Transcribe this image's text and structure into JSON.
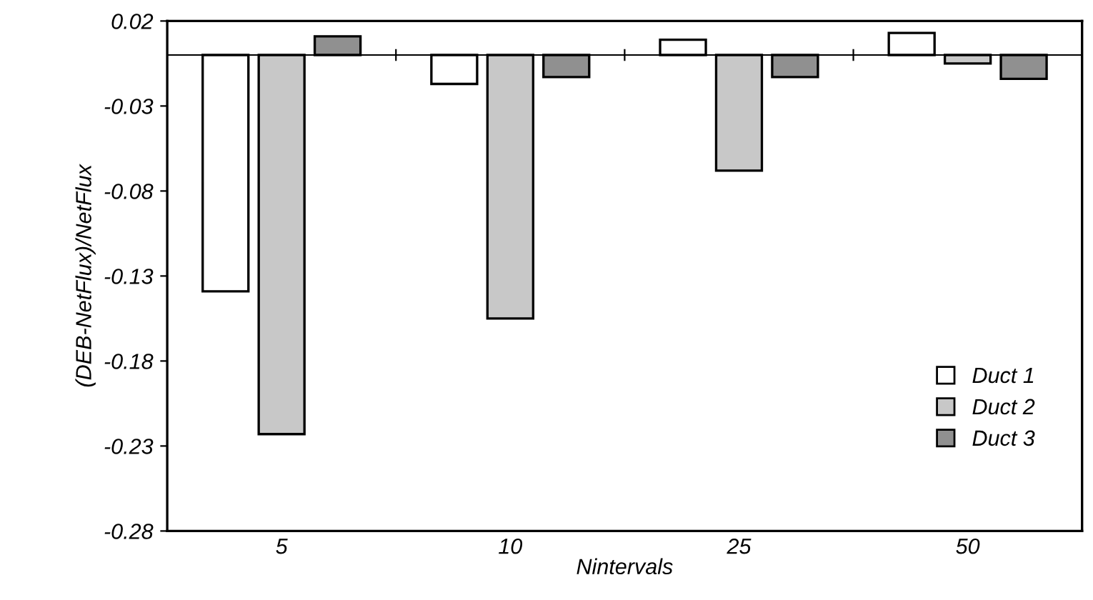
{
  "chart_data": {
    "type": "bar",
    "xlabel": "Nintervals",
    "ylabel": "(DEB-NetFlux)/NetFlux",
    "categories": [
      "5",
      "10",
      "25",
      "50"
    ],
    "series": [
      {
        "name": "Duct 1",
        "color": "#ffffff",
        "values": [
          -0.139,
          -0.017,
          0.009,
          0.013
        ]
      },
      {
        "name": "Duct 2",
        "color": "#c8c8c8",
        "values": [
          -0.223,
          -0.155,
          -0.068,
          -0.005
        ]
      },
      {
        "name": "Duct 3",
        "color": "#909090",
        "values": [
          0.011,
          -0.013,
          -0.013,
          -0.014
        ]
      }
    ],
    "ylim": [
      -0.28,
      0.02
    ],
    "yticks": [
      -0.28,
      -0.23,
      -0.18,
      -0.13,
      -0.08,
      -0.03,
      0.02
    ],
    "ref_lines": [
      {
        "axis": "y",
        "value": 0,
        "color": "#000000"
      }
    ],
    "grid": false,
    "legend": "bottom right"
  }
}
